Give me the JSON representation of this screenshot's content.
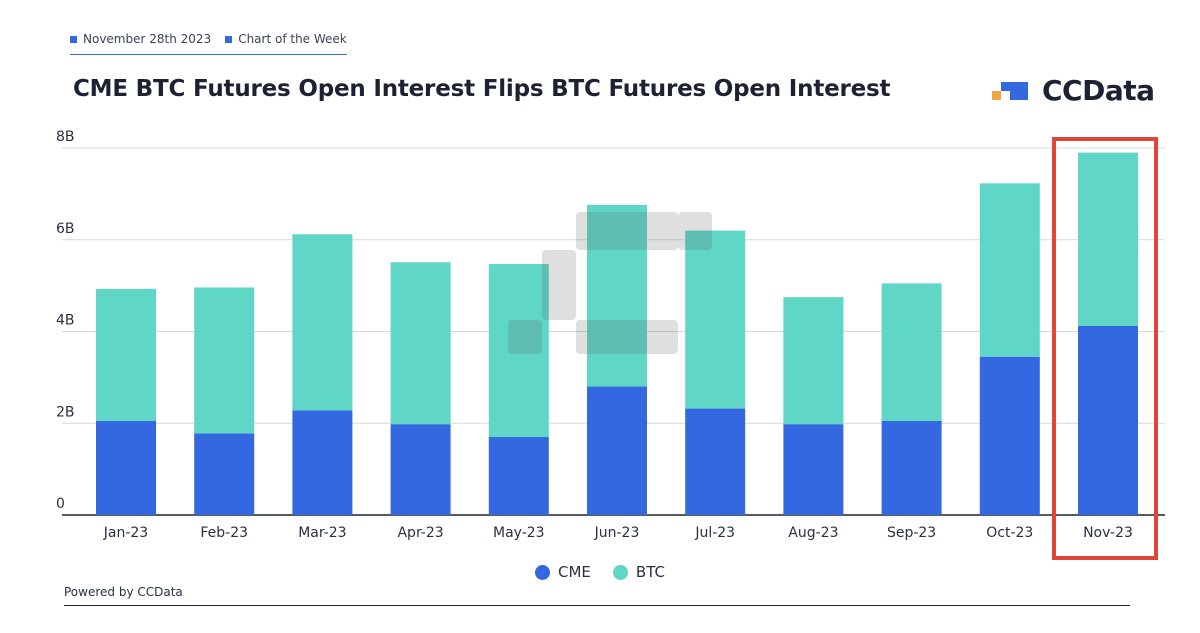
{
  "header": {
    "date": "November 28th 2023",
    "tag": "Chart of the Week"
  },
  "brand": {
    "name": "CCData"
  },
  "footer": {
    "text": "Powered by CCData"
  },
  "colors": {
    "cme": "#3468e0",
    "btc": "#5fd6c6",
    "highlight": "#e0453a"
  },
  "chart_data": {
    "type": "bar",
    "stacked": true,
    "title": "CME BTC Futures Open Interest Flips BTC Futures Open Interest",
    "categories": [
      "Jan-23",
      "Feb-23",
      "Mar-23",
      "Apr-23",
      "May-23",
      "Jun-23",
      "Jul-23",
      "Aug-23",
      "Sep-23",
      "Oct-23",
      "Nov-23"
    ],
    "series": [
      {
        "name": "CME",
        "values": [
          2.05,
          1.78,
          2.28,
          1.98,
          1.7,
          2.8,
          2.32,
          1.98,
          2.05,
          3.45,
          4.12
        ]
      },
      {
        "name": "BTC",
        "values": [
          2.88,
          3.18,
          3.84,
          3.53,
          3.77,
          3.96,
          3.88,
          2.77,
          3.0,
          3.78,
          3.78
        ]
      }
    ],
    "ylim": [
      0,
      8
    ],
    "yticks": [
      {
        "value": 0,
        "label": "0"
      },
      {
        "value": 2,
        "label": "2B"
      },
      {
        "value": 4,
        "label": "4B"
      },
      {
        "value": 6,
        "label": "6B"
      },
      {
        "value": 8,
        "label": "8B"
      }
    ],
    "grid": true,
    "legend_position": "bottom",
    "highlighted_category": "Nov-23"
  }
}
